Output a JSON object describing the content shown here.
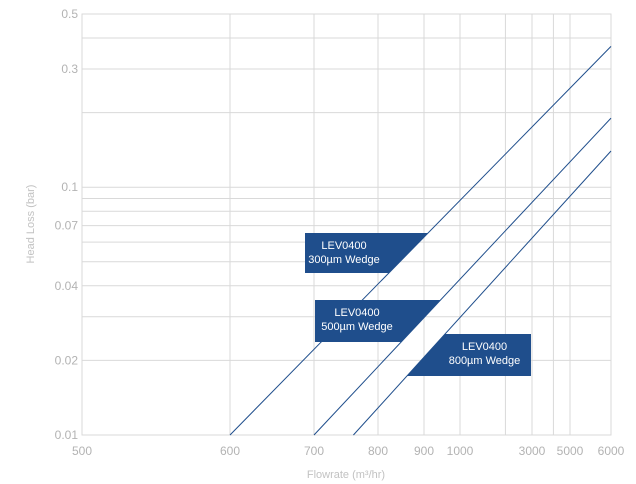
{
  "chart_data": {
    "type": "line",
    "title": "",
    "xlabel": "Flowrate (m³/hr)",
    "ylabel": "Head Loss (bar)",
    "x_scale": "custom-nonlinear",
    "y_scale": "log",
    "x_ticks": [
      "500",
      "600",
      "700",
      "800",
      "900",
      "1000",
      "3000",
      "5000",
      "6000"
    ],
    "x_tick_values": [
      500,
      600,
      700,
      800,
      900,
      1000,
      3000,
      5000,
      6000
    ],
    "y_ticks": [
      "0.01",
      "0.02",
      "0.04",
      "0.07",
      "0.1",
      "0.3",
      "0.5"
    ],
    "y_tick_values": [
      0.01,
      0.02,
      0.04,
      0.07,
      0.1,
      0.3,
      0.5
    ],
    "ylim": [
      0.01,
      0.5
    ],
    "xlim": [
      500,
      6000
    ],
    "grid": true,
    "legend": "callout labels",
    "colors": {
      "series": "#1f4e8c",
      "callout": "#1f4e8c",
      "grid": "#d9d9d9",
      "tick": "#b3b3b3"
    },
    "series": [
      {
        "name": "LEV0400 300µm Wedge",
        "x": [
          600,
          6000
        ],
        "y": [
          0.01,
          0.37
        ]
      },
      {
        "name": "LEV0400 500µm Wedge",
        "x": [
          700,
          6000
        ],
        "y": [
          0.01,
          0.19
        ]
      },
      {
        "name": "LEV0400 800µm Wedge",
        "x": [
          760,
          6000
        ],
        "y": [
          0.01,
          0.14
        ]
      }
    ],
    "annotations": [
      {
        "series": 0,
        "lines": [
          "LEV0400",
          "300µm Wedge"
        ]
      },
      {
        "series": 1,
        "lines": [
          "LEV0400",
          "500µm Wedge"
        ]
      },
      {
        "series": 2,
        "lines": [
          "LEV0400",
          "800µm Wedge"
        ]
      }
    ]
  }
}
